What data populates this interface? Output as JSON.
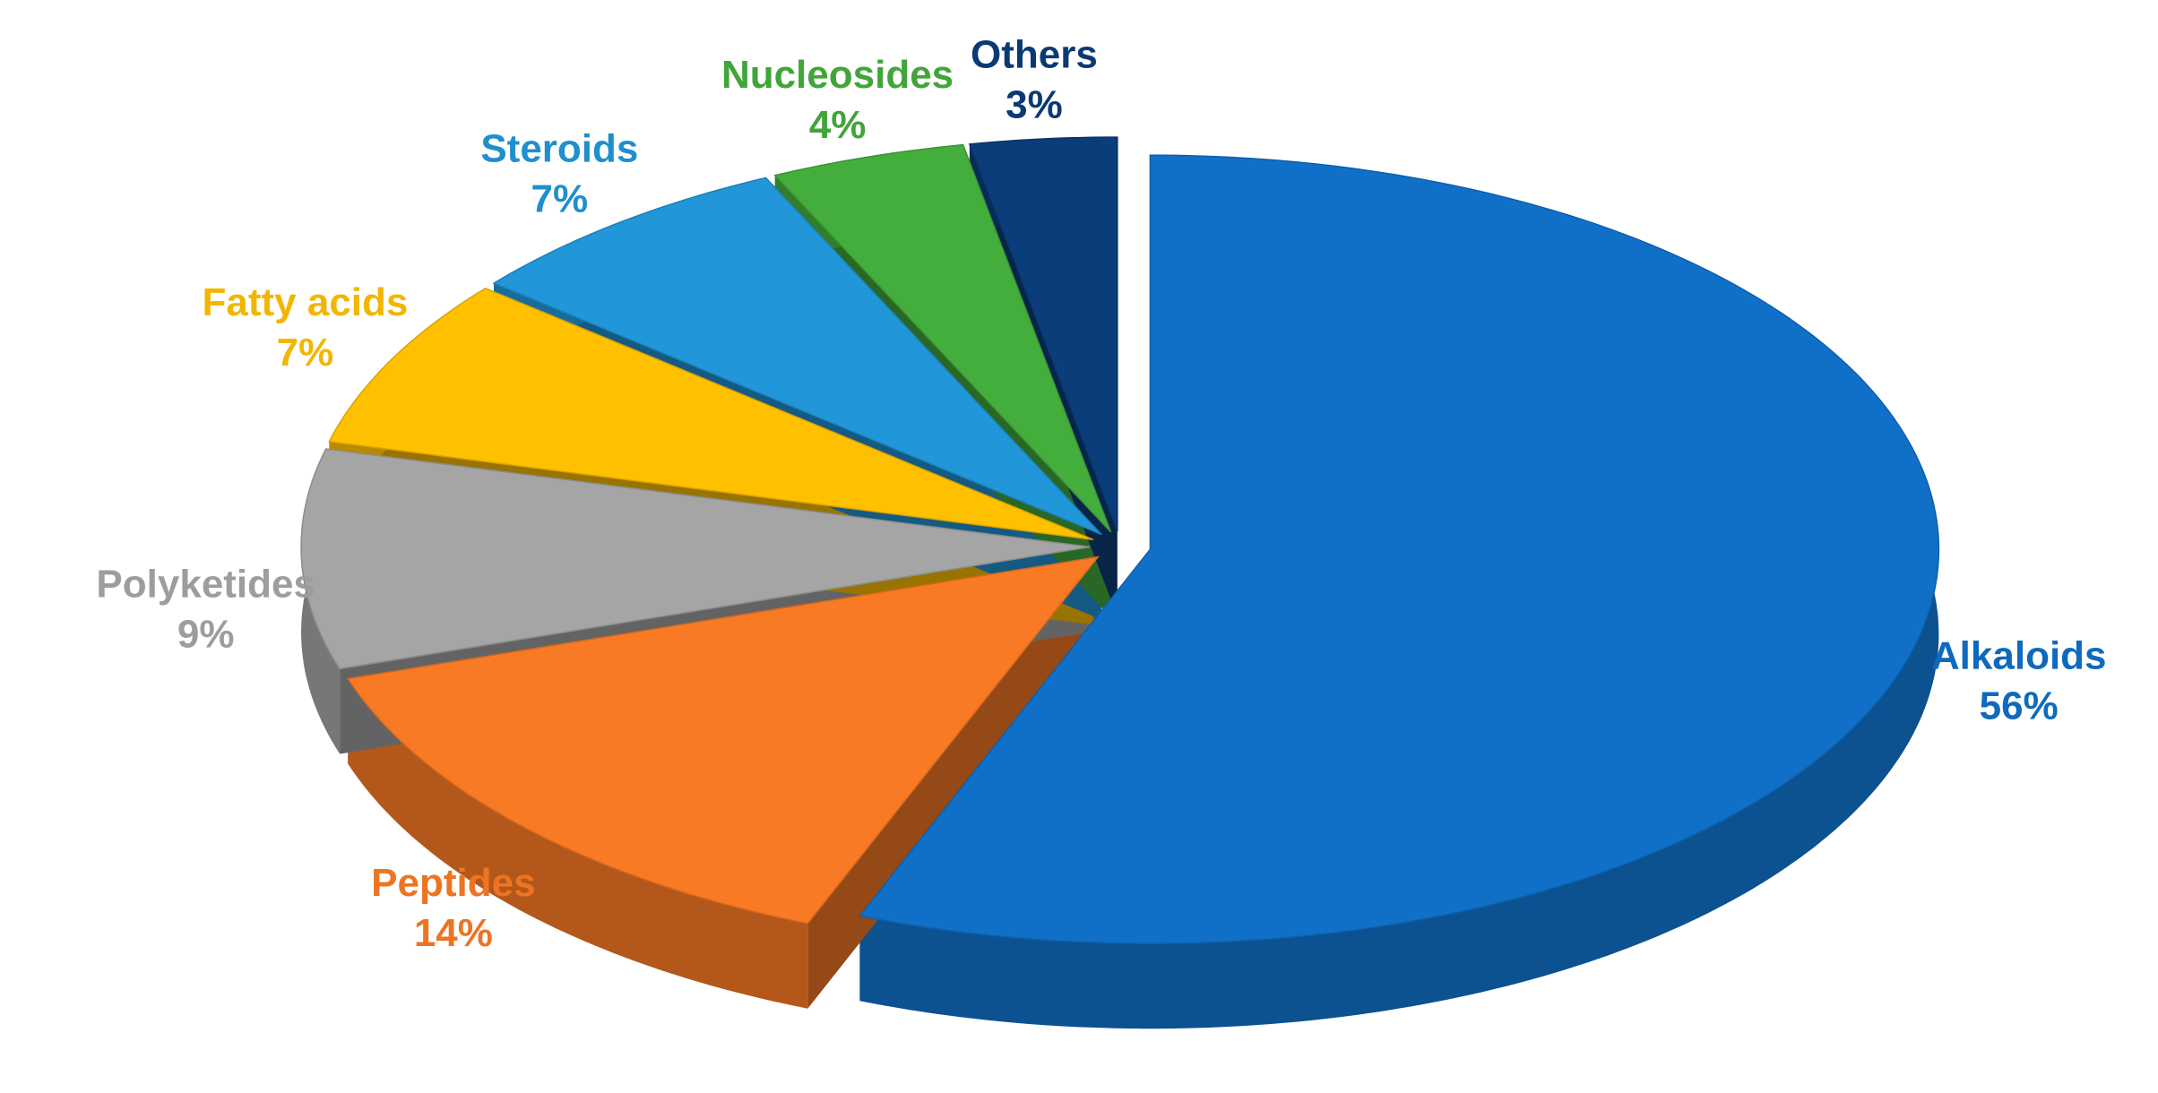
{
  "chart_data": {
    "type": "pie",
    "categories": [
      "Alkaloids",
      "Peptides",
      "Polyketides",
      "Fatty acids",
      "Steroids",
      "Nucleosides",
      "Others"
    ],
    "values": [
      56,
      14,
      9,
      7,
      7,
      4,
      3
    ],
    "value_labels": [
      "56%",
      "14%",
      "9%",
      "7%",
      "7%",
      "4%",
      "3%"
    ],
    "colors": [
      "#1070c8",
      "#f97a24",
      "#a5a5a5",
      "#ffc000",
      "#2196d8",
      "#44ae3c",
      "#0b3d7a"
    ]
  }
}
